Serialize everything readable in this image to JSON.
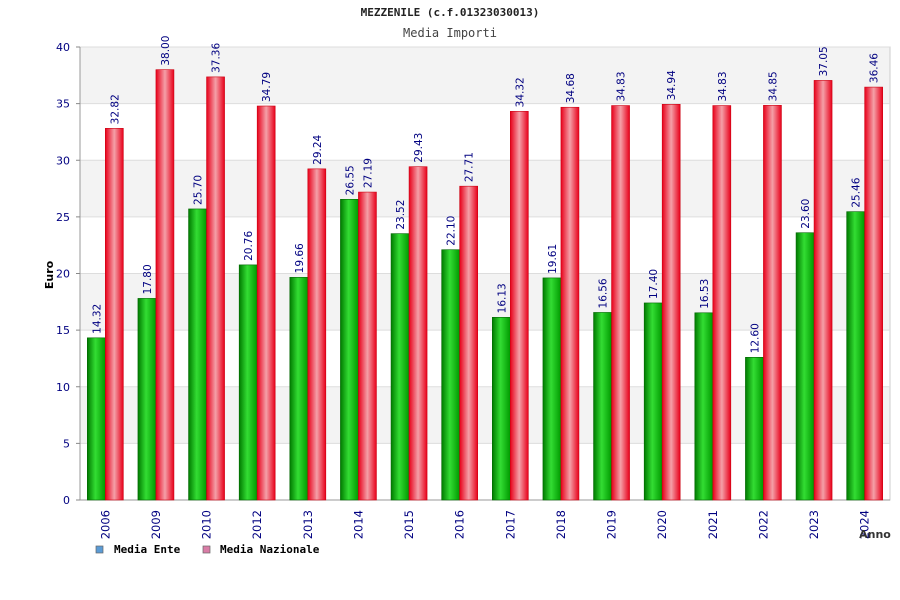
{
  "chart_data": {
    "type": "bar",
    "title": "MEZZENILE (c.f.01323030013)",
    "subtitle": "Media Importi",
    "xlabel": "Anno",
    "ylabel": "Euro",
    "ylim": [
      0,
      40
    ],
    "yticks": [
      0,
      5,
      10,
      15,
      20,
      25,
      30,
      35,
      40
    ],
    "grid": true,
    "legend_position": "bottom-left",
    "categories": [
      "2006",
      "2009",
      "2010",
      "2012",
      "2013",
      "2014",
      "2015",
      "2016",
      "2017",
      "2018",
      "2019",
      "2020",
      "2021",
      "2022",
      "2023",
      "2024"
    ],
    "series": [
      {
        "name": "Media Ente",
        "color": "#00aa00",
        "legend_color": "#5b9bd5",
        "values": [
          14.32,
          17.8,
          25.7,
          20.76,
          19.66,
          26.55,
          23.52,
          22.1,
          16.13,
          19.61,
          16.56,
          17.4,
          16.53,
          12.6,
          23.6,
          25.46
        ],
        "labels": [
          "14.32",
          "17.80",
          "25.70",
          "20.76",
          "19.66",
          "26.55",
          "23.52",
          "22.10",
          "16.13",
          "19.61",
          "16.56",
          "17.40",
          "16.53",
          "12.60",
          "23.60",
          "25.46"
        ]
      },
      {
        "name": "Media Nazionale",
        "color": "#ee1122",
        "legend_color": "#d97ca6",
        "values": [
          32.82,
          38.0,
          37.36,
          34.79,
          29.24,
          27.19,
          29.43,
          27.71,
          34.32,
          34.68,
          34.83,
          34.94,
          34.83,
          34.85,
          37.05,
          36.46
        ],
        "labels": [
          "32.82",
          "38.00",
          "37.36",
          "34.79",
          "29.24",
          "27.19",
          "29.43",
          "27.71",
          "34.32",
          "34.68",
          "34.83",
          "34.94",
          "34.83",
          "34.85",
          "37.05",
          "36.46"
        ]
      }
    ]
  }
}
